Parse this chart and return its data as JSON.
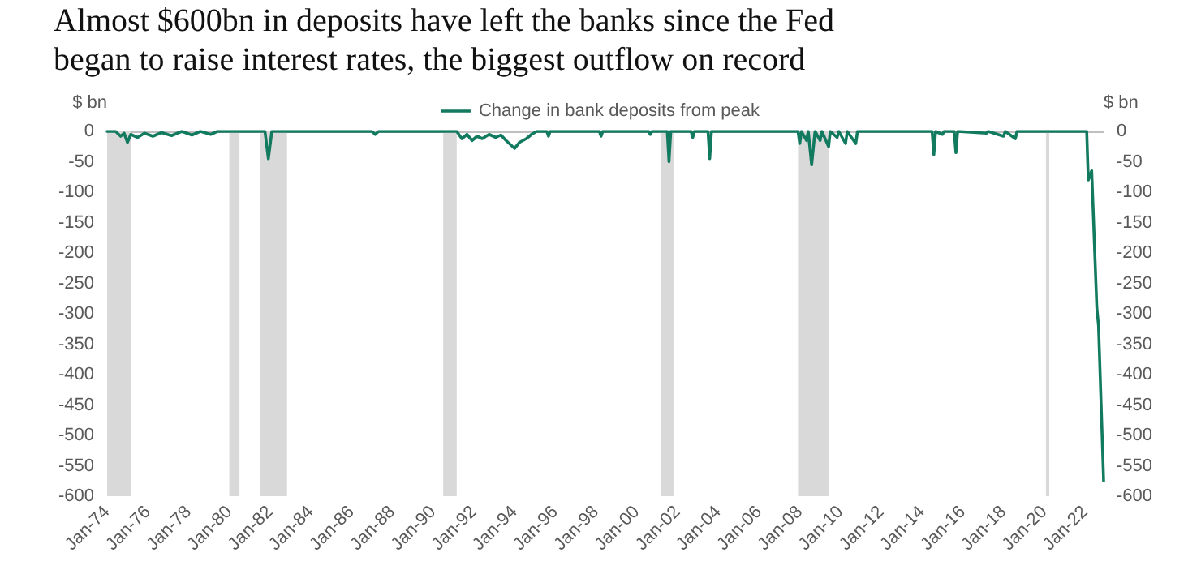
{
  "chart_data": {
    "type": "line",
    "title": "Almost $600bn in deposits have left the banks since the Fed began to raise interest rates, the biggest outflow on record",
    "ylabel": "$ bn",
    "y2label": "$ bn",
    "legend": "top",
    "grid": false,
    "marker": "none",
    "series": [
      {
        "name": "Change in bank deposits from peak",
        "color": "#127a5e",
        "x": [
          "1974-01",
          "1974-06",
          "1974-09",
          "1974-11",
          "1975-01",
          "1975-03",
          "1975-07",
          "1975-11",
          "1976-04",
          "1976-09",
          "1977-03",
          "1977-09",
          "1978-03",
          "1978-08",
          "1979-02",
          "1979-06",
          "1981-10",
          "1981-12",
          "1982-02",
          "1987-01",
          "1987-03",
          "1987-05",
          "1991-03",
          "1991-06",
          "1991-09",
          "1991-12",
          "1992-03",
          "1992-06",
          "1992-10",
          "1993-02",
          "1993-05",
          "1993-08",
          "1994-01",
          "1994-04",
          "1994-08",
          "1994-11",
          "1995-02",
          "1995-08",
          "1995-09",
          "1995-10",
          "1998-03",
          "1998-04",
          "1998-05",
          "2000-08",
          "2000-09",
          "2000-10",
          "2001-07",
          "2001-08",
          "2001-09",
          "2002-09",
          "2002-10",
          "2002-11",
          "2003-07",
          "2003-08",
          "2003-09",
          "2007-12",
          "2008-01",
          "2008-02",
          "2008-05",
          "2008-06",
          "2008-08",
          "2008-10",
          "2009-01",
          "2009-02",
          "2009-06",
          "2009-07",
          "2009-11",
          "2009-12",
          "2010-04",
          "2010-05",
          "2010-10",
          "2010-11",
          "2014-07",
          "2014-08",
          "2014-09",
          "2015-01",
          "2015-02",
          "2015-08",
          "2015-09",
          "2015-10",
          "2017-03",
          "2017-04",
          "2018-01",
          "2018-02",
          "2018-08",
          "2018-09",
          "2022-02",
          "2022-03",
          "2022-05",
          "2022-08",
          "2022-09",
          "2022-12"
        ],
        "values": [
          0,
          0,
          -8,
          -3,
          -18,
          -5,
          -10,
          -3,
          -8,
          -2,
          -7,
          0,
          -6,
          0,
          -5,
          0,
          0,
          -45,
          0,
          0,
          -5,
          0,
          0,
          -12,
          -5,
          -15,
          -8,
          -12,
          -5,
          -10,
          -6,
          -15,
          -28,
          -18,
          -12,
          -5,
          0,
          0,
          -8,
          0,
          0,
          -8,
          0,
          0,
          -5,
          0,
          0,
          -50,
          0,
          0,
          -10,
          0,
          0,
          -45,
          0,
          0,
          -20,
          0,
          -15,
          0,
          -55,
          0,
          -15,
          0,
          -25,
          0,
          -10,
          0,
          -20,
          0,
          -20,
          0,
          0,
          -38,
          0,
          -5,
          0,
          0,
          -35,
          0,
          -3,
          0,
          -8,
          0,
          -12,
          0,
          0,
          -80,
          -65,
          -290,
          -320,
          -575
        ]
      }
    ],
    "bands": [
      {
        "axis": "x",
        "from": "1974-01",
        "to": "1975-03",
        "color": "#d9d9d9"
      },
      {
        "axis": "x",
        "from": "1980-01",
        "to": "1980-07",
        "color": "#d9d9d9"
      },
      {
        "axis": "x",
        "from": "1981-07",
        "to": "1982-11",
        "color": "#d9d9d9"
      },
      {
        "axis": "x",
        "from": "1990-07",
        "to": "1991-03",
        "color": "#d9d9d9"
      },
      {
        "axis": "x",
        "from": "2001-03",
        "to": "2001-11",
        "color": "#d9d9d9"
      },
      {
        "axis": "x",
        "from": "2007-12",
        "to": "2009-06",
        "color": "#d9d9d9"
      },
      {
        "axis": "x",
        "from": "2020-02",
        "to": "2020-04",
        "color": "#d9d9d9"
      }
    ],
    "xlim": [
      "1974-01",
      "2022-12"
    ],
    "xticks": [
      {
        "value": "1974-01",
        "label": "Jan-74"
      },
      {
        "value": "1976-01",
        "label": "Jan-76"
      },
      {
        "value": "1978-01",
        "label": "Jan-78"
      },
      {
        "value": "1980-01",
        "label": "Jan-80"
      },
      {
        "value": "1982-01",
        "label": "Jan-82"
      },
      {
        "value": "1984-01",
        "label": "Jan-84"
      },
      {
        "value": "1986-01",
        "label": "Jan-86"
      },
      {
        "value": "1988-01",
        "label": "Jan-88"
      },
      {
        "value": "1990-01",
        "label": "Jan-90"
      },
      {
        "value": "1992-01",
        "label": "Jan-92"
      },
      {
        "value": "1994-01",
        "label": "Jan-94"
      },
      {
        "value": "1996-01",
        "label": "Jan-96"
      },
      {
        "value": "1998-01",
        "label": "Jan-98"
      },
      {
        "value": "2000-01",
        "label": "Jan-00"
      },
      {
        "value": "2002-01",
        "label": "Jan-02"
      },
      {
        "value": "2004-01",
        "label": "Jan-04"
      },
      {
        "value": "2006-01",
        "label": "Jan-06"
      },
      {
        "value": "2008-01",
        "label": "Jan-08"
      },
      {
        "value": "2010-01",
        "label": "Jan-10"
      },
      {
        "value": "2012-01",
        "label": "Jan-12"
      },
      {
        "value": "2014-01",
        "label": "Jan-14"
      },
      {
        "value": "2016-01",
        "label": "Jan-16"
      },
      {
        "value": "2018-01",
        "label": "Jan-18"
      },
      {
        "value": "2020-01",
        "label": "Jan-20"
      },
      {
        "value": "2022-01",
        "label": "Jan-22"
      }
    ],
    "ylim": [
      -600,
      0
    ],
    "yticks": [
      -600,
      -550,
      -500,
      -450,
      -400,
      -350,
      -300,
      -250,
      -200,
      -150,
      -100,
      -50,
      0
    ],
    "y2lim": [
      -600,
      0
    ],
    "y2ticks": [
      -600,
      -550,
      -500,
      -450,
      -400,
      -350,
      -300,
      -250,
      -200,
      -150,
      -100,
      -50,
      0
    ]
  }
}
